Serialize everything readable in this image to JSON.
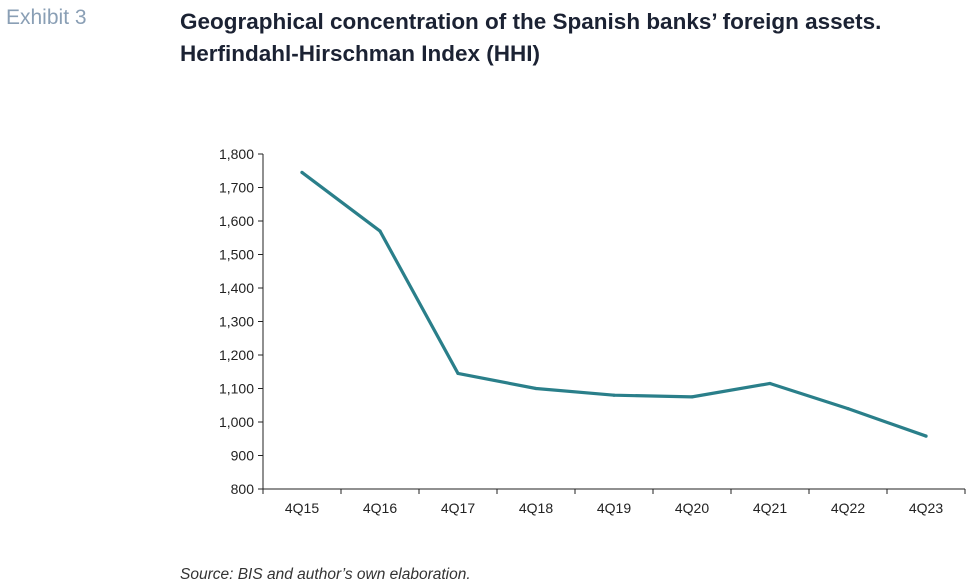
{
  "header": {
    "exhibit_label": "Exhibit 3",
    "title": "Geographical concentration of the Spanish banks’ foreign assets. Herfindahl-Hirschman Index (HHI)"
  },
  "footer": {
    "source": "Source: BIS and author’s own elaboration."
  },
  "colors": {
    "line": "#2a7f8a",
    "axis": "#222222"
  },
  "chart_data": {
    "type": "line",
    "title": "Geographical concentration of the Spanish banks’ foreign assets. Herfindahl-Hirschman Index (HHI)",
    "xlabel": "",
    "ylabel": "",
    "categories": [
      "4Q15",
      "4Q16",
      "4Q17",
      "4Q18",
      "4Q19",
      "4Q20",
      "4Q21",
      "4Q22",
      "4Q23"
    ],
    "series": [
      {
        "values": [
          1745,
          1570,
          1145,
          1100,
          1080,
          1075,
          1115,
          1040,
          958
        ]
      }
    ],
    "ylim": [
      800,
      1800
    ],
    "yticks": [
      800,
      900,
      1000,
      1100,
      1200,
      1300,
      1400,
      1500,
      1600,
      1700,
      1800
    ],
    "ytick_labels": [
      "800",
      "900",
      "1,000",
      "1,100",
      "1,200",
      "1,300",
      "1,400",
      "1,500",
      "1,600",
      "1,700",
      "1,800"
    ],
    "grid": false,
    "legend": "none"
  }
}
